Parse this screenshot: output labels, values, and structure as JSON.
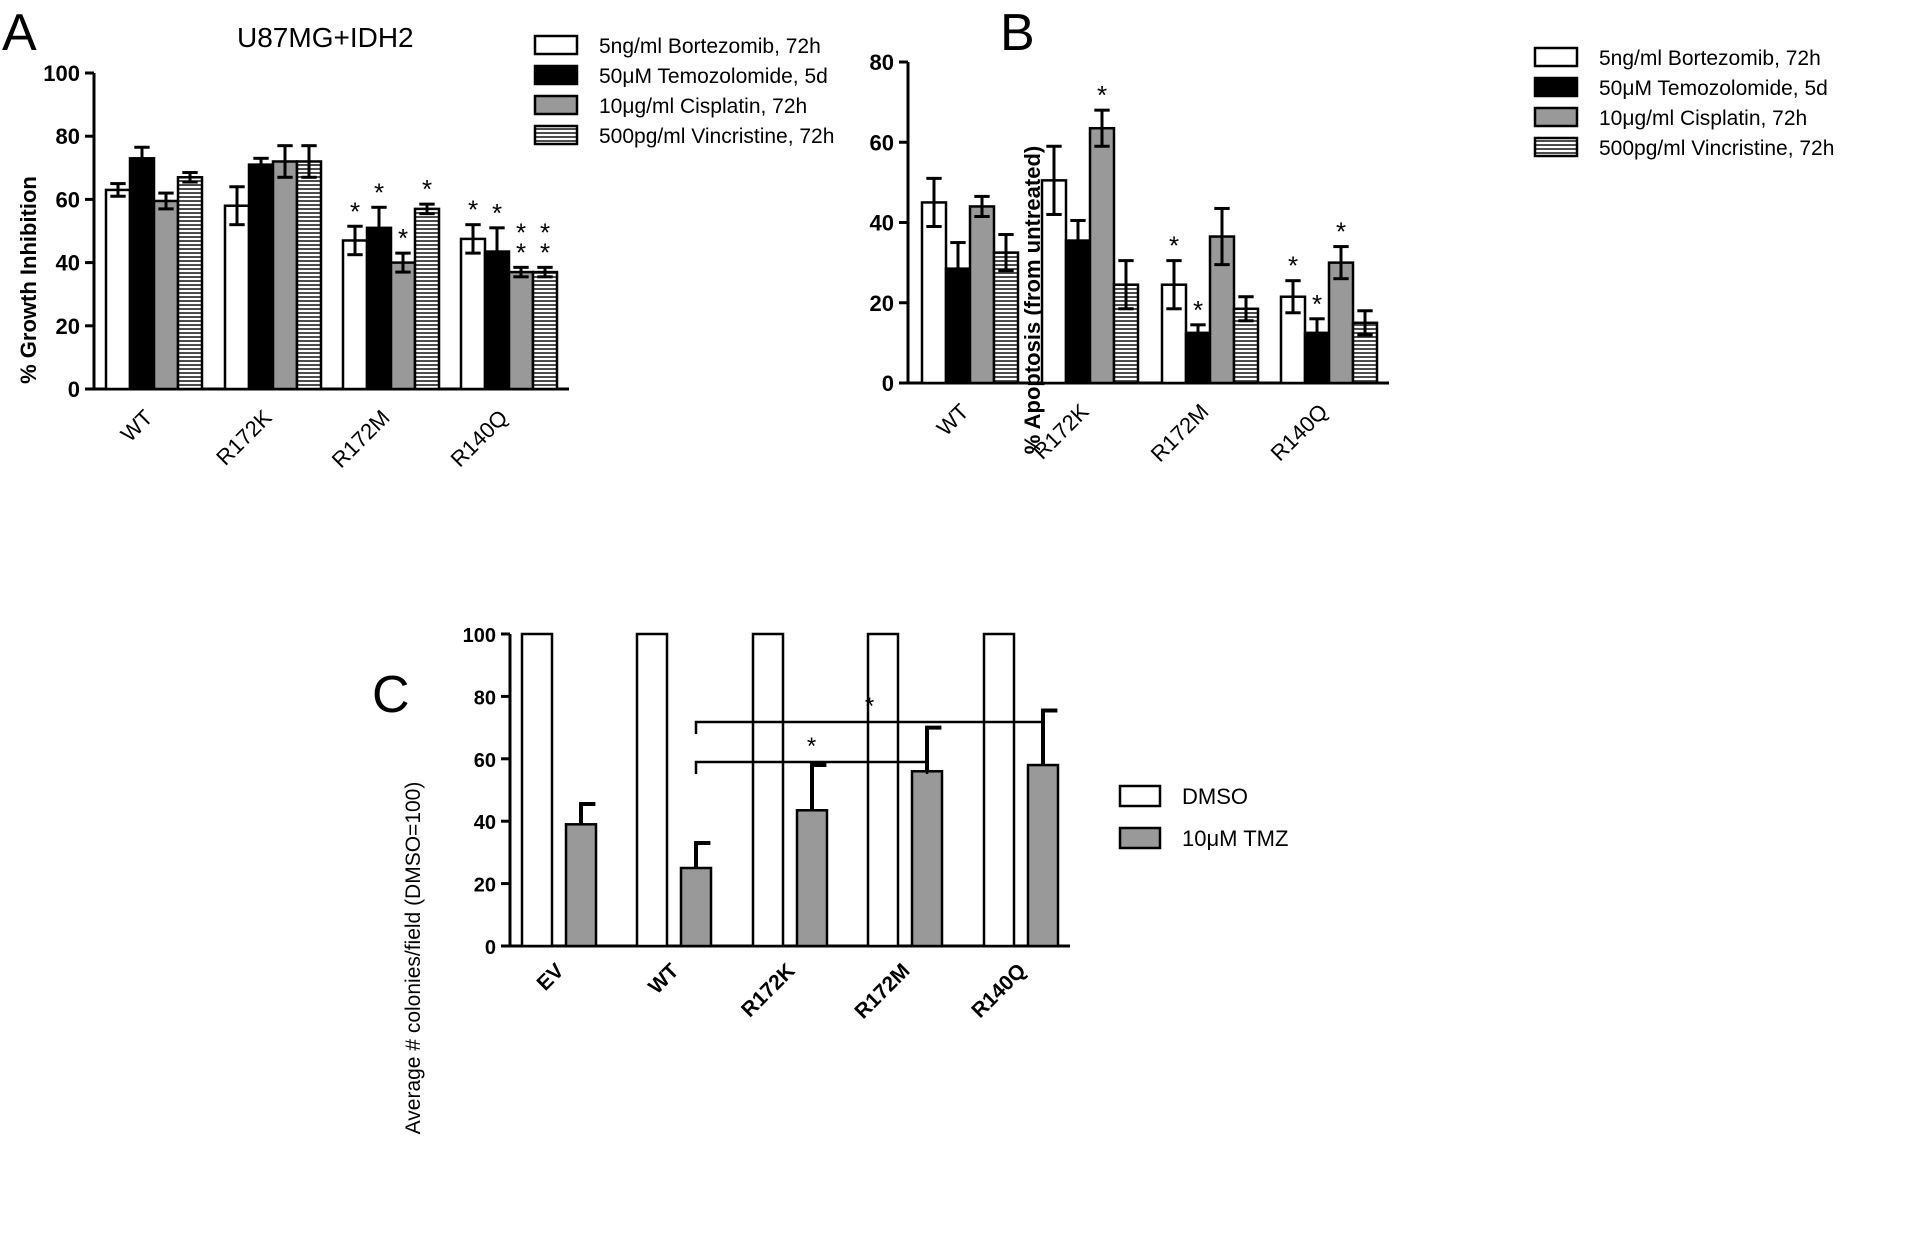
{
  "chart_data": [
    {
      "panel": "A",
      "type": "bar",
      "title": "U87MG+IDH2",
      "ylabel": "% Growth Inhibition",
      "xlabel": "",
      "ylim": [
        0,
        100
      ],
      "yticks": [
        0,
        20,
        40,
        60,
        80,
        100
      ],
      "grid": false,
      "legend_position": "top-right",
      "categories": [
        "WT",
        "R172K",
        "R172M",
        "R140Q"
      ],
      "series": [
        {
          "name": "5ng/ml Bortezomib, 72h",
          "fill": "white",
          "values": [
            63,
            58,
            47,
            47.5
          ],
          "errors": [
            2,
            6,
            4.5,
            4.5
          ],
          "stars": [
            0,
            0,
            1,
            1
          ]
        },
        {
          "name": "50μM Temozolomide, 5d",
          "fill": "black",
          "values": [
            73,
            71,
            51,
            43.5
          ],
          "errors": [
            3.5,
            2,
            6.5,
            7.5
          ],
          "stars": [
            0,
            0,
            1,
            1
          ]
        },
        {
          "name": "10μg/ml Cisplatin, 72h",
          "fill": "gray",
          "values": [
            59.5,
            72,
            40,
            37
          ],
          "errors": [
            2.5,
            5,
            3,
            1.5
          ],
          "stars": [
            0,
            0,
            1,
            2
          ]
        },
        {
          "name": "500pg/ml Vincristine, 72h",
          "fill": "hlines",
          "values": [
            67,
            72,
            57,
            37
          ],
          "errors": [
            1.5,
            5,
            1.5,
            1.5
          ],
          "stars": [
            0,
            0,
            1,
            2
          ]
        }
      ]
    },
    {
      "panel": "B",
      "type": "bar",
      "title": "",
      "ylabel": "% Apoptosis (from untreated)",
      "xlabel": "",
      "ylim": [
        0,
        80
      ],
      "yticks": [
        0,
        20,
        40,
        60,
        80
      ],
      "grid": false,
      "legend_position": "top-right",
      "categories": [
        "WT",
        "R172K",
        "R172M",
        "R140Q"
      ],
      "series": [
        {
          "name": "5ng/ml Bortezomib, 72h",
          "fill": "white",
          "values": [
            45,
            50.5,
            24.5,
            21.5
          ],
          "errors": [
            6,
            8.5,
            6,
            4
          ],
          "stars": [
            0,
            0,
            1,
            1
          ]
        },
        {
          "name": "50μM Temozolomide, 5d",
          "fill": "black",
          "values": [
            28.5,
            35.5,
            12.5,
            12.5
          ],
          "errors": [
            6.5,
            5,
            2,
            3.5
          ],
          "stars": [
            0,
            0,
            1,
            1
          ]
        },
        {
          "name": "10μg/ml Cisplatin, 72h",
          "fill": "gray",
          "values": [
            44,
            63.5,
            36.5,
            30
          ],
          "errors": [
            2.5,
            4.5,
            7,
            4
          ],
          "stars": [
            0,
            1,
            0,
            1
          ]
        },
        {
          "name": "500pg/ml Vincristine, 72h",
          "fill": "hlines",
          "values": [
            32.5,
            24.5,
            18.5,
            15
          ],
          "errors": [
            4.5,
            6,
            3,
            3
          ],
          "stars": [
            0,
            0,
            0,
            0
          ]
        }
      ]
    },
    {
      "panel": "C",
      "type": "bar",
      "title": "",
      "ylabel": "Average # colonies/field (DMSO=100)",
      "xlabel": "",
      "ylim": [
        0,
        100
      ],
      "yticks": [
        0,
        20,
        40,
        60,
        80,
        100
      ],
      "grid": false,
      "legend_position": "right",
      "categories": [
        "EV",
        "WT",
        "R172K",
        "R172M",
        "R140Q"
      ],
      "series": [
        {
          "name": "DMSO",
          "fill": "white",
          "values": [
            100,
            100,
            100,
            100,
            100
          ],
          "errors": [
            0,
            0,
            0,
            0,
            0
          ]
        },
        {
          "name": "10μM TMZ",
          "fill": "gray",
          "values": [
            39,
            25,
            43.5,
            56,
            58
          ],
          "errors": [
            6.5,
            8,
            14.5,
            14,
            17.5
          ]
        }
      ],
      "comparisons": [
        {
          "from": "WT",
          "to": "R172M",
          "label": "*"
        },
        {
          "from": "WT",
          "to": "R140Q",
          "label": "*"
        }
      ]
    }
  ],
  "panel_labels": [
    "A",
    "B",
    "C"
  ],
  "colors": {
    "black": "#000000",
    "gray": "#999999",
    "white": "#ffffff"
  }
}
